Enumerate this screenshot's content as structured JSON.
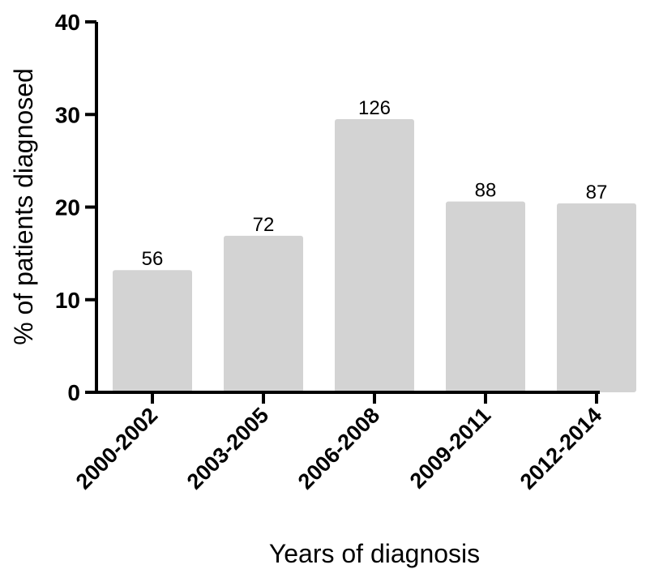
{
  "chart_data": {
    "type": "bar",
    "categories": [
      "2000-2002",
      "2003-2005",
      "2006-2008",
      "2009-2011",
      "2012-2014"
    ],
    "values": [
      13.2,
      16.9,
      29.5,
      20.6,
      20.4
    ],
    "data_labels": [
      "56",
      "72",
      "126",
      "88",
      "87"
    ],
    "xlabel": "Years of diagnosis",
    "ylabel": "% of patients diagnosed",
    "ylim": [
      0,
      40
    ],
    "yticks": [
      0,
      10,
      20,
      30,
      40
    ],
    "ytick_labels": [
      "0",
      "10",
      "20",
      "30",
      "40"
    ],
    "bar_color": "#d3d3d3",
    "grid": false
  }
}
